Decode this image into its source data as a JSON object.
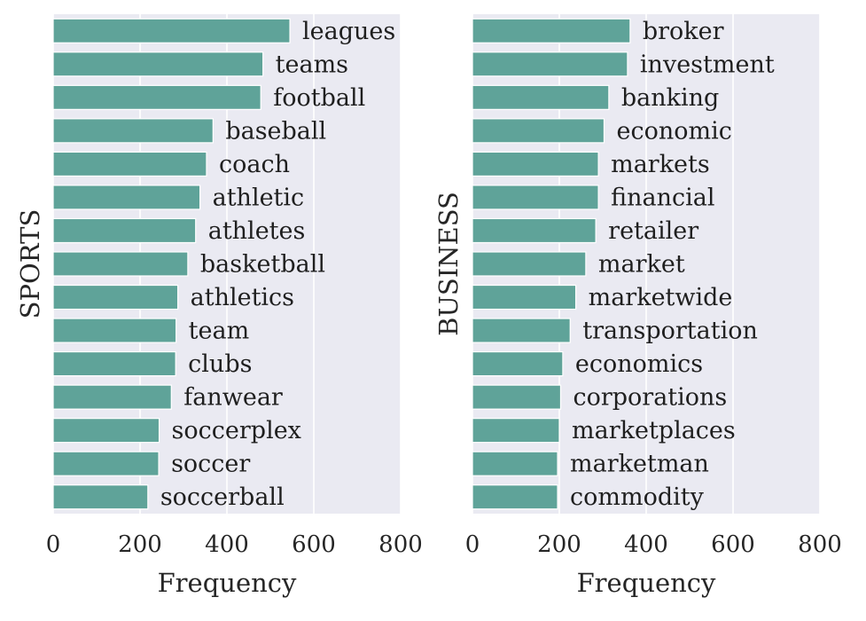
{
  "colors": {
    "bar": "#5fa399",
    "panel_bg": "#eaeaf2",
    "grid": "#ffffff"
  },
  "chart_data": [
    {
      "type": "bar",
      "orientation": "horizontal",
      "ylabel": "SPORTS",
      "xlabel": "Frequency",
      "xlim": [
        0,
        800
      ],
      "xticks": [
        0,
        200,
        400,
        600,
        800
      ],
      "grid": true,
      "categories": [
        "leagues",
        "teams",
        "football",
        "baseball",
        "coach",
        "athletic",
        "athletes",
        "basketball",
        "athletics",
        "team",
        "clubs",
        "fanwear",
        "soccerplex",
        "soccer",
        "soccerball"
      ],
      "values": [
        545,
        483,
        478,
        368,
        353,
        338,
        328,
        310,
        287,
        283,
        282,
        272,
        244,
        243,
        218
      ]
    },
    {
      "type": "bar",
      "orientation": "horizontal",
      "ylabel": "BUSINESS",
      "xlabel": "Frequency",
      "xlim": [
        0,
        800
      ],
      "xticks": [
        0,
        200,
        400,
        600,
        800
      ],
      "grid": true,
      "categories": [
        "broker",
        "investment",
        "banking",
        "economic",
        "markets",
        "financial",
        "retailer",
        "market",
        "marketwide",
        "transportation",
        "economics",
        "corporations",
        "marketplaces",
        "marketman",
        "commodity"
      ],
      "values": [
        363,
        357,
        314,
        303,
        290,
        290,
        284,
        261,
        238,
        225,
        208,
        203,
        200,
        196,
        196
      ]
    }
  ]
}
